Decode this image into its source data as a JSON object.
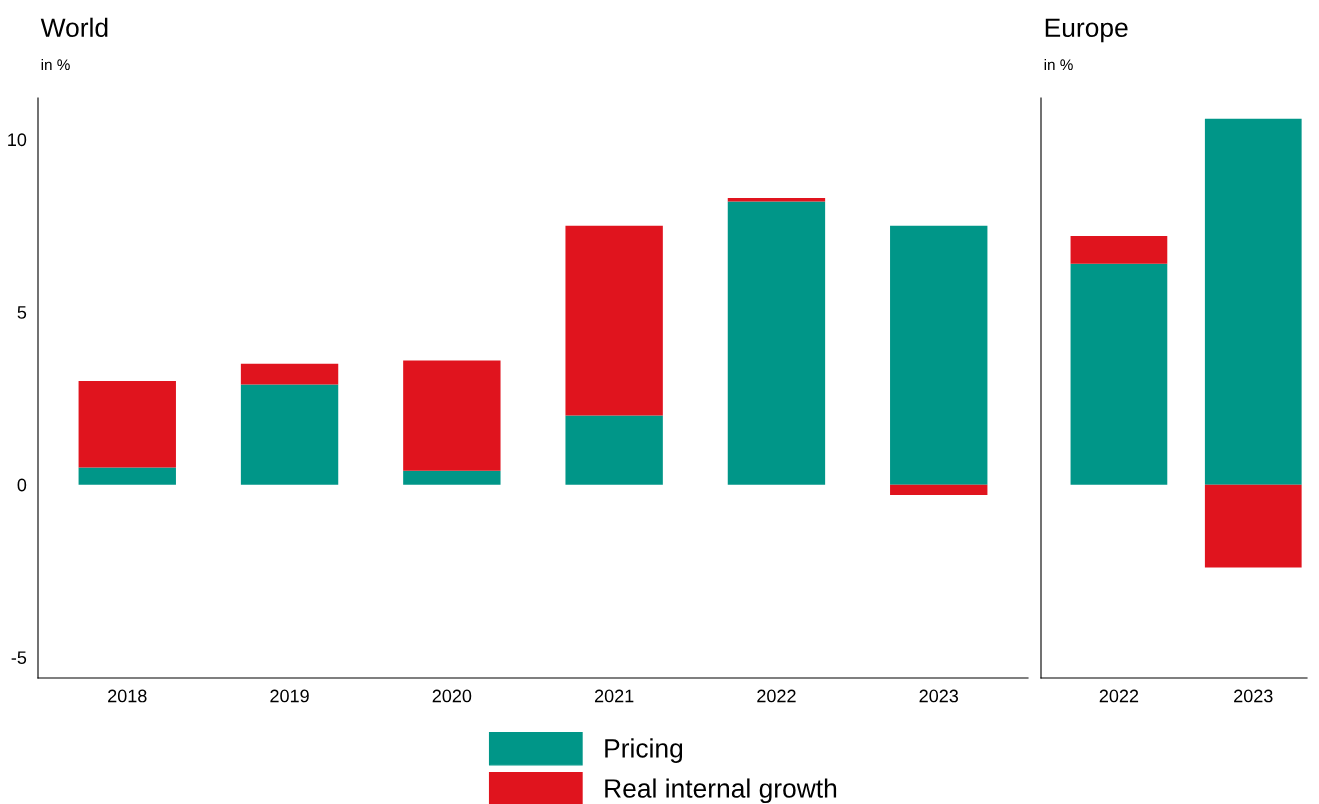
{
  "chart_data": [
    {
      "type": "bar",
      "title": "World",
      "subtitle": "in %",
      "stacked": true,
      "legend": "bottom",
      "tick_labels": "xy",
      "categories": [
        "2018",
        "2019",
        "2020",
        "2021",
        "2022",
        "2023"
      ],
      "series": [
        {
          "name": "Pricing",
          "color": "#009688",
          "values": [
            0.5,
            2.9,
            0.4,
            2.0,
            8.2,
            7.5
          ]
        },
        {
          "name": "Real internal growth",
          "color": "#e0141e",
          "values": [
            2.5,
            0.6,
            3.2,
            5.5,
            0.1,
            -0.3
          ]
        }
      ],
      "ylim": [
        -5.6,
        11.2
      ],
      "yticks": [
        -5,
        0,
        5,
        10
      ]
    },
    {
      "type": "bar",
      "title": "Europe",
      "subtitle": "in %",
      "stacked": true,
      "tick_labels": "x",
      "categories": [
        "2022",
        "2023"
      ],
      "series": [
        {
          "color": "#009688",
          "values": [
            6.4,
            10.6
          ]
        },
        {
          "color": "#e0141e",
          "values": [
            0.8,
            -2.4
          ]
        }
      ],
      "ylim": [
        -5.6,
        11.2
      ],
      "yticks": [
        -5,
        0,
        5,
        10
      ]
    }
  ]
}
